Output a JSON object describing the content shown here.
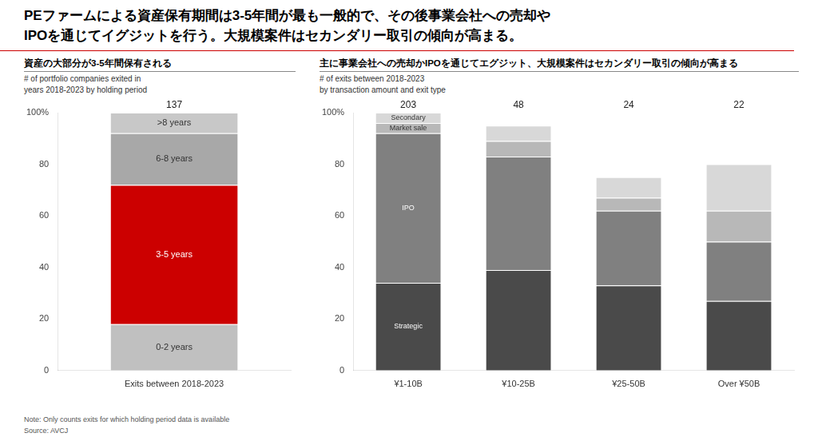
{
  "title": "PEファームによる資産保有期間は3-5年間が最も一般的で、その後事業会社への売却や\nIPOを通じてイグジットを行う。大規模案件はセカンダリー取引の傾向が高まる。",
  "note": "Note:  Only counts exits for which holding period data is available\nSource: AVCJ",
  "chart_data": [
    {
      "type": "bar",
      "stacked": true,
      "title": "資産の大部分が3-5年間保有される",
      "subtitle": "# of portfolio companies exited in\nyears 2018-2023 by holding period",
      "categories": [
        "Exits between 2018-2023"
      ],
      "series": [
        {
          "name": "0-2 years",
          "color": "#c0c0c0",
          "values": [
            18
          ]
        },
        {
          "name": "3-5 years",
          "color": "#cc0000",
          "values": [
            54
          ]
        },
        {
          "name": "6-8 years",
          "color": "#a8a8a8",
          "values": [
            20
          ]
        },
        {
          "name": ">8 years",
          "color": "#c8c8c8",
          "values": [
            8
          ]
        }
      ],
      "totals": [
        137
      ],
      "annotations": [
        {
          "text": "0-2 years",
          "series": "0-2 years",
          "category": "Exits between 2018-2023",
          "color": "#333333"
        },
        {
          "text": "3-5 years",
          "series": "3-5 years",
          "category": "Exits between 2018-2023",
          "color": "#ffffff"
        },
        {
          "text": "6-8 years",
          "series": "6-8 years",
          "category": "Exits between 2018-2023",
          "color": "#333333"
        },
        {
          "text": ">8 years",
          "series": ">8 years",
          "category": "Exits between 2018-2023",
          "color": "#333333"
        }
      ],
      "ylim": [
        0,
        100
      ],
      "yticks": [
        0,
        20,
        40,
        60,
        80,
        {
          "value": 100,
          "label": "100%"
        }
      ],
      "grid": false
    },
    {
      "type": "bar",
      "stacked": true,
      "title": "主に事業会社への売却かIPOを通じてエグジット、大規模案件はセカンダリー取引の傾向が高まる",
      "subtitle": "# of exits between 2018-2023\nby transaction amount and exit type",
      "categories": [
        "¥1-10B",
        "¥10-25B",
        "¥25-50B",
        "Over ¥50B"
      ],
      "series": [
        {
          "name": "Strategic",
          "color": "#4a4a4a",
          "values": [
            34,
            39,
            33,
            27
          ]
        },
        {
          "name": "IPO",
          "color": "#808080",
          "values": [
            58,
            44,
            29,
            23
          ]
        },
        {
          "name": "Market sale",
          "color": "#b8b8b8",
          "values": [
            4,
            6,
            5,
            12
          ]
        },
        {
          "name": "Secondary",
          "color": "#d8d8d8",
          "values": [
            4,
            6,
            8,
            18
          ]
        }
      ],
      "totals": [
        203,
        48,
        24,
        22
      ],
      "annotations": [
        {
          "text": "Strategic",
          "series": "Strategic",
          "category": "¥1-10B",
          "color": "#ffffff"
        },
        {
          "text": "IPO",
          "series": "IPO",
          "category": "¥1-10B",
          "color": "#ffffff"
        },
        {
          "text": "Market sale",
          "series": "Market sale",
          "category": "¥1-10B",
          "color": "#333333"
        },
        {
          "text": "Secondary",
          "series": "Secondary",
          "category": "¥1-10B",
          "color": "#333333"
        }
      ],
      "ylim": [
        0,
        100
      ],
      "yticks": [
        0,
        20,
        40,
        60,
        80,
        {
          "value": 100,
          "label": "100%"
        }
      ],
      "grid": false
    }
  ]
}
